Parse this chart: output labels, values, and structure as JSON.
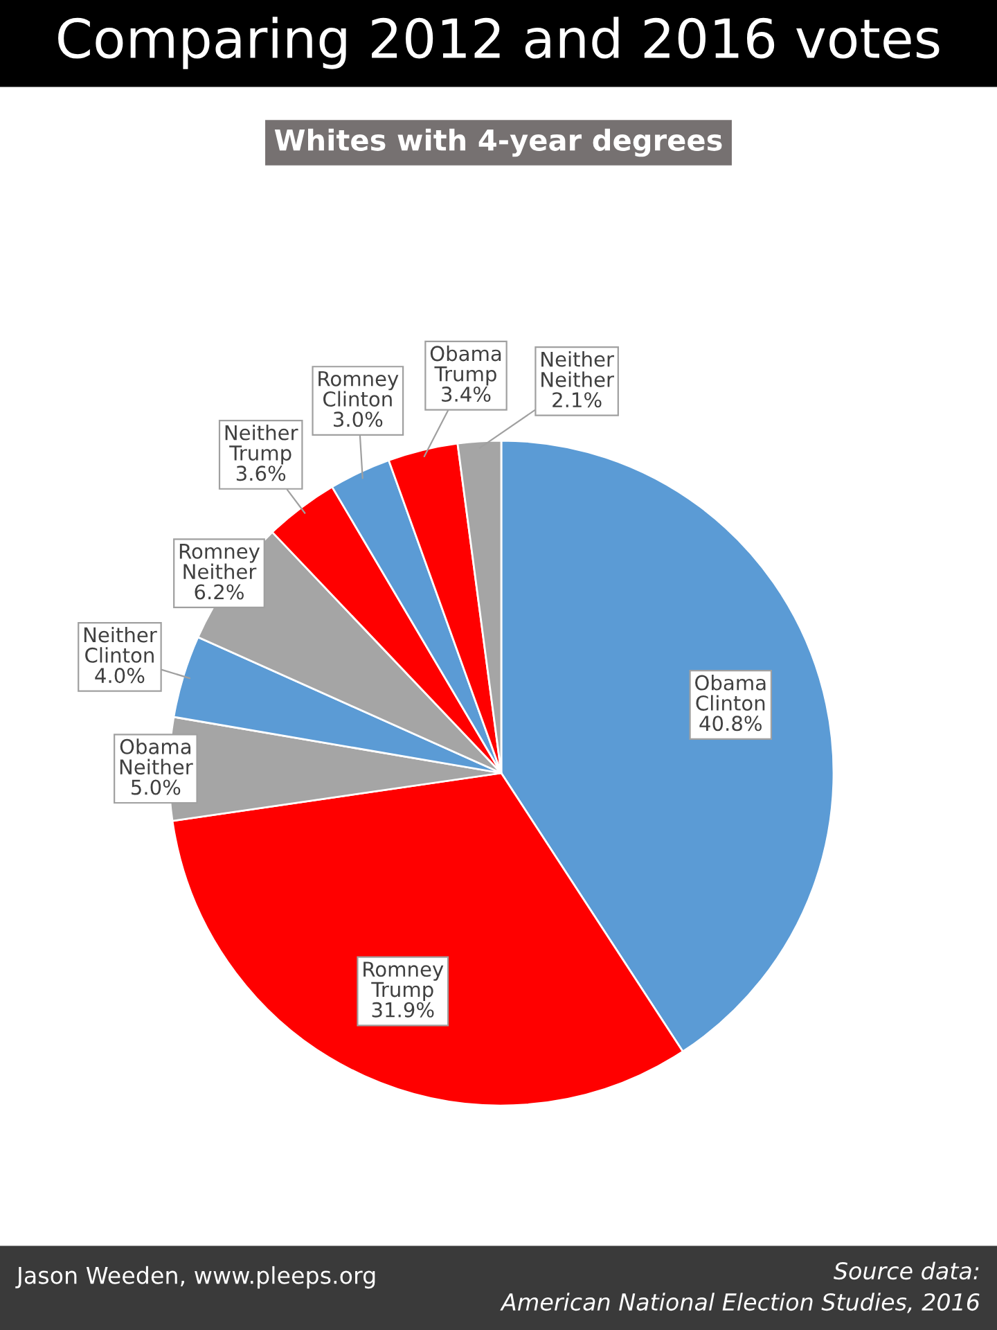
{
  "chart_data": {
    "type": "pie",
    "title": "Comparing 2012 and 2016 votes",
    "subtitle": "Whites with 4-year degrees",
    "categories": [
      "Obama\nClinton",
      "Romney\nTrump",
      "Obama\nNeither",
      "Neither\nClinton",
      "Romney\nNeither",
      "Neither\nTrump",
      "Romney\nClinton",
      "Obama\nTrump",
      "Neither\nNeither"
    ],
    "values": [
      40.8,
      31.9,
      5.0,
      4.0,
      6.2,
      3.6,
      3.0,
      3.4,
      2.1
    ],
    "colors": [
      "#5b9bd5",
      "#ff0000",
      "#a5a5a5",
      "#5b9bd5",
      "#a5a5a5",
      "#ff0000",
      "#5b9bd5",
      "#ff0000",
      "#a5a5a5"
    ],
    "value_labels": [
      "40.8%",
      "31.9%",
      "5.0%",
      "4.0%",
      "6.2%",
      "3.6%",
      "3.0%",
      "3.4%",
      "2.1%"
    ],
    "annotations": [
      "Jason Weeden, www.pleeps.org",
      "Source data:\nAmerican National Election Studies, 2016"
    ]
  }
}
